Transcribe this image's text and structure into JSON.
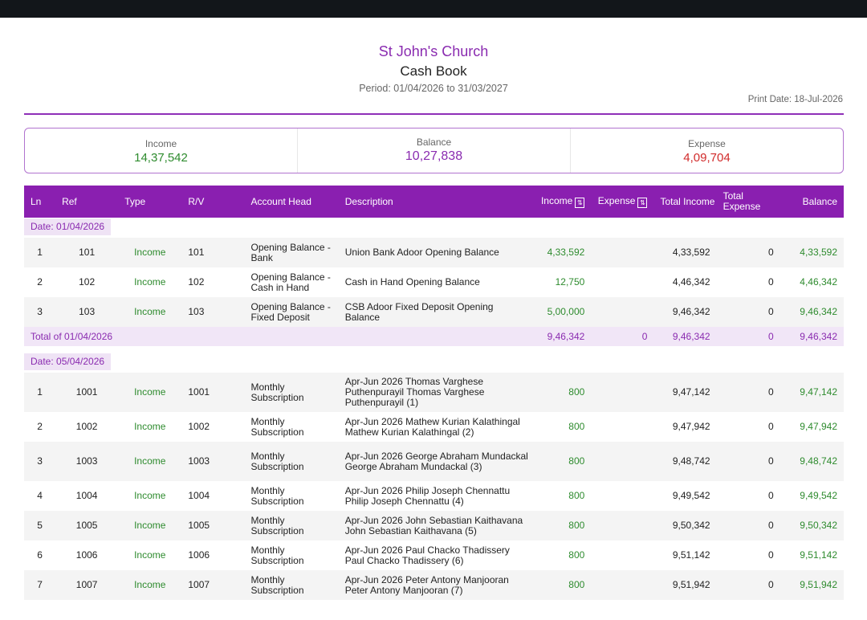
{
  "org_name": "St John's Church",
  "doc_title": "Cash Book",
  "period": "Period: 01/04/2026 to 31/03/2027",
  "print_date": "Print Date: 18-Jul-2026",
  "summary": {
    "income_label": "Income",
    "income_value": "14,37,542",
    "balance_label": "Balance",
    "balance_value": "10,27,838",
    "expense_label": "Expense",
    "expense_value": "4,09,704"
  },
  "columns": {
    "ln": "Ln",
    "ref": "Ref",
    "type": "Type",
    "rv": "R/V",
    "account_head": "Account Head",
    "description": "Description",
    "income": "Income",
    "expense": "Expense",
    "total_income": "Total Income",
    "total_expense": "Total Expense",
    "balance": "Balance"
  },
  "groups": [
    {
      "date_label": "Date: 01/04/2026",
      "rows": [
        {
          "ln": "1",
          "ref": "101",
          "type": "Income",
          "rv": "101",
          "account_head": "Opening Balance - Bank",
          "description": "Union Bank Adoor Opening Balance",
          "income": "4,33,592",
          "expense": "",
          "total_income": "4,33,592",
          "total_expense": "0",
          "balance": "4,33,592"
        },
        {
          "ln": "2",
          "ref": "102",
          "type": "Income",
          "rv": "102",
          "account_head": "Opening Balance - Cash in Hand",
          "description": "Cash in Hand Opening Balance",
          "income": "12,750",
          "expense": "",
          "total_income": "4,46,342",
          "total_expense": "0",
          "balance": "4,46,342"
        },
        {
          "ln": "3",
          "ref": "103",
          "type": "Income",
          "rv": "103",
          "account_head": "Opening Balance - Fixed Deposit",
          "description": "CSB Adoor Fixed Deposit Opening Balance",
          "income": "5,00,000",
          "expense": "",
          "total_income": "9,46,342",
          "total_expense": "0",
          "balance": "9,46,342"
        }
      ],
      "total": {
        "label": "Total of 01/04/2026",
        "income": "9,46,342",
        "expense": "0",
        "total_income": "9,46,342",
        "total_expense": "0",
        "balance": "9,46,342"
      }
    },
    {
      "date_label": "Date: 05/04/2026",
      "rows": [
        {
          "ln": "1",
          "ref": "1001",
          "type": "Income",
          "rv": "1001",
          "account_head": "Monthly Subscription",
          "description": "Apr-Jun 2026 Thomas Varghese Puthenpurayil Thomas Varghese Puthenpurayil (1)",
          "income": "800",
          "expense": "",
          "total_income": "9,47,142",
          "total_expense": "0",
          "balance": "9,47,142"
        },
        {
          "ln": "2",
          "ref": "1002",
          "type": "Income",
          "rv": "1002",
          "account_head": "Monthly Subscription",
          "description": "Apr-Jun 2026 Mathew Kurian Kalathingal Mathew Kurian Kalathingal (2)",
          "income": "800",
          "expense": "",
          "total_income": "9,47,942",
          "total_expense": "0",
          "balance": "9,47,942"
        },
        {
          "ln": "3",
          "ref": "1003",
          "type": "Income",
          "rv": "1003",
          "account_head": "Monthly Subscription",
          "description": "Apr-Jun 2026 George Abraham Mundackal George Abraham Mundackal (3)",
          "income": "800",
          "expense": "",
          "total_income": "9,48,742",
          "total_expense": "0",
          "balance": "9,48,742"
        },
        {
          "ln": "4",
          "ref": "1004",
          "type": "Income",
          "rv": "1004",
          "account_head": "Monthly Subscription",
          "description": "Apr-Jun 2026 Philip Joseph Chennattu Philip Joseph Chennattu (4)",
          "income": "800",
          "expense": "",
          "total_income": "9,49,542",
          "total_expense": "0",
          "balance": "9,49,542"
        },
        {
          "ln": "5",
          "ref": "1005",
          "type": "Income",
          "rv": "1005",
          "account_head": "Monthly Subscription",
          "description": "Apr-Jun 2026 John Sebastian Kaithavana John Sebastian Kaithavana (5)",
          "income": "800",
          "expense": "",
          "total_income": "9,50,342",
          "total_expense": "0",
          "balance": "9,50,342"
        },
        {
          "ln": "6",
          "ref": "1006",
          "type": "Income",
          "rv": "1006",
          "account_head": "Monthly Subscription",
          "description": "Apr-Jun 2026 Paul Chacko Thadissery Paul Chacko Thadissery (6)",
          "income": "800",
          "expense": "",
          "total_income": "9,51,142",
          "total_expense": "0",
          "balance": "9,51,142"
        },
        {
          "ln": "7",
          "ref": "1007",
          "type": "Income",
          "rv": "1007",
          "account_head": "Monthly Subscription",
          "description": "Apr-Jun 2026 Peter Antony Manjooran Peter Antony Manjooran (7)",
          "income": "800",
          "expense": "",
          "total_income": "9,51,942",
          "total_expense": "0",
          "balance": "9,51,942"
        }
      ]
    }
  ],
  "colors": {
    "accent": "#8a1fb0",
    "income": "#2e8b2e",
    "expense": "#d12b2b",
    "header_text": "#ffffff"
  }
}
